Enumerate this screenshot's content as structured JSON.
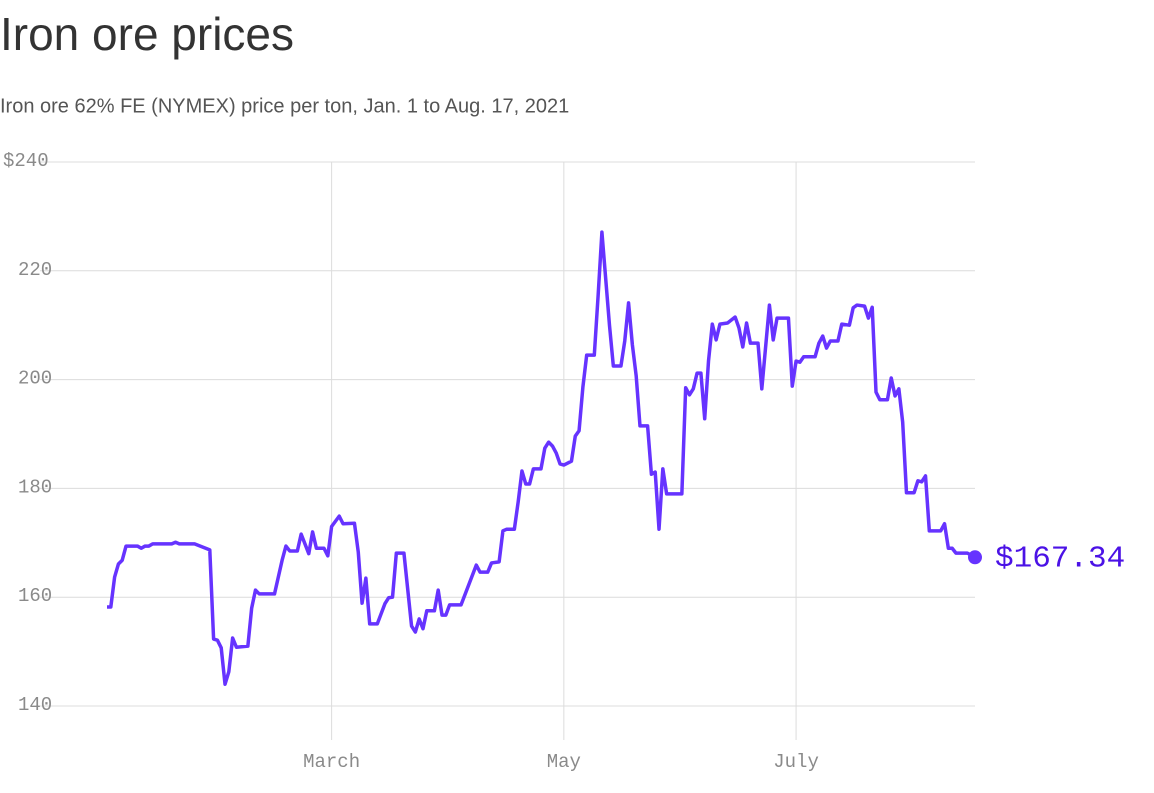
{
  "chart_data": {
    "type": "line",
    "title": "Iron ore prices",
    "subtitle": "Iron ore 62% FE (NYMEX) price per ton, Jan. 1 to Aug. 17, 2021",
    "x": [
      1,
      2,
      3,
      4,
      5,
      6,
      9,
      10,
      11,
      12,
      13,
      18,
      19,
      20,
      24,
      28,
      29,
      30,
      31,
      32,
      33,
      34,
      35,
      38,
      39,
      40,
      41,
      45,
      47,
      48,
      49,
      51,
      52,
      54,
      55,
      56,
      58,
      59,
      60,
      62,
      63,
      66,
      67,
      68,
      69,
      70,
      72,
      74,
      75,
      76,
      77,
      79,
      81,
      82,
      83,
      84,
      85,
      87,
      88,
      89,
      90,
      91,
      94,
      98,
      99,
      101,
      102,
      104,
      105,
      106,
      108,
      109,
      110,
      111,
      112,
      113,
      115,
      116,
      117,
      118,
      119,
      120,
      121,
      123,
      124,
      125,
      126,
      127,
      129,
      130,
      131,
      133,
      134,
      136,
      137,
      138,
      139,
      140,
      141,
      143,
      144,
      145,
      146,
      147,
      148,
      152,
      153,
      154,
      155,
      156,
      157,
      158,
      159,
      160,
      161,
      162,
      164,
      166,
      167,
      168,
      169,
      170,
      172,
      173,
      175,
      176,
      177,
      180,
      181,
      182,
      183,
      184,
      187,
      188,
      189,
      190,
      191,
      193,
      194,
      196,
      197,
      198,
      200,
      201,
      202,
      203,
      204,
      206,
      207,
      208,
      209,
      210,
      211,
      213,
      214,
      215,
      216,
      217,
      220,
      221,
      222,
      223,
      224,
      227,
      229
    ],
    "series": [
      {
        "name": "Iron ore 62% FE",
        "color": "#6633ff",
        "label_color": "#4b12e6",
        "values": [
          158.2,
          158.2,
          163.7,
          166.1,
          166.8,
          169.4,
          169.4,
          169,
          169.4,
          169.4,
          169.8,
          169.8,
          170.1,
          169.8,
          169.8,
          168.7,
          152.3,
          152.1,
          150.7,
          144,
          146.3,
          152.5,
          150.8,
          151,
          158,
          161.3,
          160.6,
          160.6,
          166.8,
          169.4,
          168.5,
          168.5,
          171.6,
          168,
          172,
          169,
          169,
          167.6,
          173,
          174.9,
          173.5,
          173.6,
          168.3,
          158.9,
          163.5,
          155.1,
          155.1,
          158.8,
          159.9,
          160,
          168.1,
          168.1,
          154.7,
          153.6,
          156,
          154.2,
          157.5,
          157.5,
          161.3,
          156.7,
          156.7,
          158.6,
          158.6,
          165.9,
          164.6,
          164.6,
          166.3,
          166.5,
          172.2,
          172.5,
          172.5,
          177.5,
          183.2,
          180.8,
          180.8,
          183.6,
          183.6,
          187.4,
          188.5,
          187.8,
          186.5,
          184.5,
          184.3,
          185,
          189.6,
          190.6,
          198.6,
          204.5,
          204.5,
          215.4,
          227.1,
          209.9,
          202.5,
          202.5,
          207.1,
          214.1,
          206.4,
          200.7,
          191.5,
          191.5,
          182.6,
          183,
          172.5,
          183.6,
          179,
          179,
          198.5,
          197.2,
          198.3,
          201.2,
          201.2,
          192.8,
          203.4,
          210.2,
          207.3,
          210.2,
          210.4,
          211.5,
          209.5,
          206,
          210.4,
          206.7,
          206.7,
          198.3,
          213.7,
          207.3,
          211.3,
          211.3,
          198.8,
          203.4,
          203.2,
          204.2,
          204.2,
          206.7,
          208,
          205.8,
          207.1,
          207.1,
          210.2,
          210,
          213.2,
          213.7,
          213.5,
          211.3,
          213.3,
          197.7,
          196.3,
          196.3,
          200.3,
          197,
          198.3,
          192.2,
          179.2,
          179.2,
          181.4,
          181.2,
          182.3,
          172.2,
          172.2,
          173.5,
          169,
          169,
          168.1,
          168.1,
          167.34
        ],
        "value_labels": [
          null,
          null,
          null,
          null,
          null,
          null,
          null,
          null,
          null,
          null,
          null,
          null,
          null,
          null,
          null,
          null,
          null,
          null,
          null,
          null,
          null,
          null,
          null,
          null,
          null,
          null,
          null,
          null,
          null,
          null,
          null,
          null,
          null,
          null,
          null,
          null,
          null,
          null,
          null,
          null,
          null,
          null,
          null,
          null,
          null,
          null,
          null,
          null,
          null,
          null,
          null,
          null,
          null,
          null,
          null,
          null,
          null,
          null,
          null,
          null,
          null,
          null,
          null,
          null,
          null,
          null,
          null,
          null,
          null,
          null,
          null,
          null,
          null,
          null,
          null,
          null,
          null,
          null,
          null,
          null,
          null,
          null,
          null,
          null,
          null,
          null,
          null,
          null,
          null,
          null,
          null,
          null,
          null,
          null,
          null,
          null,
          null,
          null,
          null,
          null,
          null,
          null,
          null,
          null,
          null,
          null,
          null,
          null,
          null,
          null,
          null,
          null,
          null,
          null,
          null,
          null,
          null,
          null,
          null,
          null,
          null,
          null,
          null,
          null,
          null,
          null,
          null,
          null,
          null,
          null,
          null,
          null,
          null,
          null,
          null,
          null,
          null,
          null,
          null,
          null,
          null,
          null,
          null,
          null,
          null,
          null,
          null,
          null,
          null,
          null,
          null,
          null,
          null,
          null,
          null,
          null,
          null,
          null,
          null,
          null,
          null,
          null,
          null,
          null,
          "$167.34"
        ]
      }
    ],
    "xlim": [
      1,
      229
    ],
    "xticks": [
      {
        "value": 60,
        "label": "March"
      },
      {
        "value": 121,
        "label": "May"
      },
      {
        "value": 182,
        "label": "July"
      }
    ],
    "ylim": [
      140,
      240
    ],
    "yticks": [
      {
        "value": 240,
        "label": "$240"
      },
      220,
      200,
      180,
      160,
      140
    ],
    "grid": true
  }
}
